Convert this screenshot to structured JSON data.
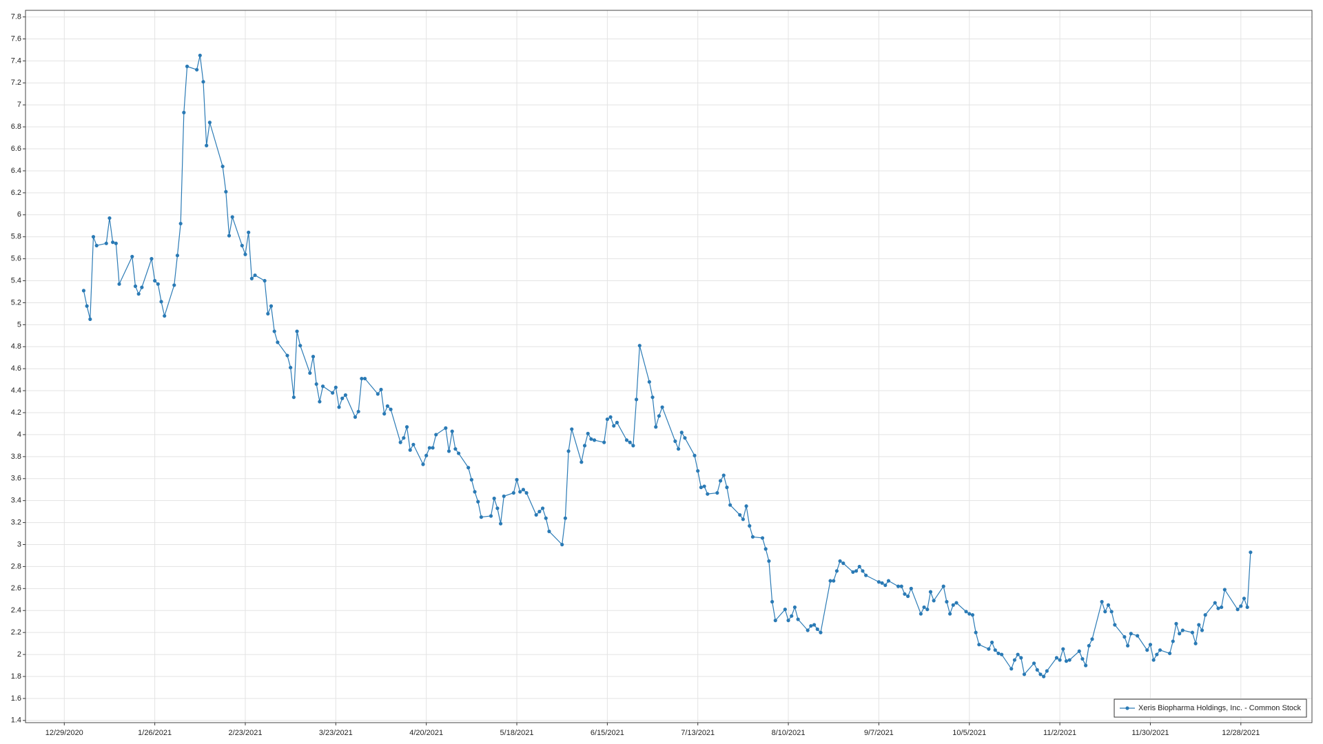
{
  "chart_data": {
    "type": "line",
    "x": [
      "1/4/2021",
      "1/5/2021",
      "1/6/2021",
      "1/7/2021",
      "1/8/2021",
      "1/11/2021",
      "1/12/2021",
      "1/13/2021",
      "1/14/2021",
      "1/15/2021",
      "1/19/2021",
      "1/20/2021",
      "1/21/2021",
      "1/22/2021",
      "1/25/2021",
      "1/26/2021",
      "1/27/2021",
      "1/28/2021",
      "1/29/2021",
      "2/1/2021",
      "2/2/2021",
      "2/3/2021",
      "2/4/2021",
      "2/5/2021",
      "2/8/2021",
      "2/9/2021",
      "2/10/2021",
      "2/11/2021",
      "2/12/2021",
      "2/16/2021",
      "2/17/2021",
      "2/18/2021",
      "2/19/2021",
      "2/22/2021",
      "2/23/2021",
      "2/24/2021",
      "2/25/2021",
      "2/26/2021",
      "3/1/2021",
      "3/2/2021",
      "3/3/2021",
      "3/4/2021",
      "3/5/2021",
      "3/8/2021",
      "3/9/2021",
      "3/10/2021",
      "3/11/2021",
      "3/12/2021",
      "3/15/2021",
      "3/16/2021",
      "3/17/2021",
      "3/18/2021",
      "3/19/2021",
      "3/22/2021",
      "3/23/2021",
      "3/24/2021",
      "3/25/2021",
      "3/26/2021",
      "3/29/2021",
      "3/30/2021",
      "3/31/2021",
      "4/1/2021",
      "4/5/2021",
      "4/6/2021",
      "4/7/2021",
      "4/8/2021",
      "4/9/2021",
      "4/12/2021",
      "4/13/2021",
      "4/14/2021",
      "4/15/2021",
      "4/16/2021",
      "4/19/2021",
      "4/20/2021",
      "4/21/2021",
      "4/22/2021",
      "4/23/2021",
      "4/26/2021",
      "4/27/2021",
      "4/28/2021",
      "4/29/2021",
      "4/30/2021",
      "5/3/2021",
      "5/4/2021",
      "5/5/2021",
      "5/6/2021",
      "5/7/2021",
      "5/10/2021",
      "5/11/2021",
      "5/12/2021",
      "5/13/2021",
      "5/14/2021",
      "5/17/2021",
      "5/18/2021",
      "5/19/2021",
      "5/20/2021",
      "5/21/2021",
      "5/24/2021",
      "5/25/2021",
      "5/26/2021",
      "5/27/2021",
      "5/28/2021",
      "6/1/2021",
      "6/2/2021",
      "6/3/2021",
      "6/4/2021",
      "6/7/2021",
      "6/8/2021",
      "6/9/2021",
      "6/10/2021",
      "6/11/2021",
      "6/14/2021",
      "6/15/2021",
      "6/16/2021",
      "6/17/2021",
      "6/18/2021",
      "6/21/2021",
      "6/22/2021",
      "6/23/2021",
      "6/24/2021",
      "6/25/2021",
      "6/28/2021",
      "6/29/2021",
      "6/30/2021",
      "7/1/2021",
      "7/2/2021",
      "7/6/2021",
      "7/7/2021",
      "7/8/2021",
      "7/9/2021",
      "7/12/2021",
      "7/13/2021",
      "7/14/2021",
      "7/15/2021",
      "7/16/2021",
      "7/19/2021",
      "7/20/2021",
      "7/21/2021",
      "7/22/2021",
      "7/23/2021",
      "7/26/2021",
      "7/27/2021",
      "7/28/2021",
      "7/29/2021",
      "7/30/2021",
      "8/2/2021",
      "8/3/2021",
      "8/4/2021",
      "8/5/2021",
      "8/6/2021",
      "8/9/2021",
      "8/10/2021",
      "8/11/2021",
      "8/12/2021",
      "8/13/2021",
      "8/16/2021",
      "8/17/2021",
      "8/18/2021",
      "8/19/2021",
      "8/20/2021",
      "8/23/2021",
      "8/24/2021",
      "8/25/2021",
      "8/26/2021",
      "8/27/2021",
      "8/30/2021",
      "8/31/2021",
      "9/1/2021",
      "9/2/2021",
      "9/3/2021",
      "9/7/2021",
      "9/8/2021",
      "9/9/2021",
      "9/10/2021",
      "9/13/2021",
      "9/14/2021",
      "9/15/2021",
      "9/16/2021",
      "9/17/2021",
      "9/20/2021",
      "9/21/2021",
      "9/22/2021",
      "9/23/2021",
      "9/24/2021",
      "9/27/2021",
      "9/28/2021",
      "9/29/2021",
      "9/30/2021",
      "10/1/2021",
      "10/4/2021",
      "10/5/2021",
      "10/6/2021",
      "10/7/2021",
      "10/8/2021",
      "10/11/2021",
      "10/12/2021",
      "10/13/2021",
      "10/14/2021",
      "10/15/2021",
      "10/18/2021",
      "10/19/2021",
      "10/20/2021",
      "10/21/2021",
      "10/22/2021",
      "10/25/2021",
      "10/26/2021",
      "10/27/2021",
      "10/28/2021",
      "10/29/2021",
      "11/1/2021",
      "11/2/2021",
      "11/3/2021",
      "11/4/2021",
      "11/5/2021",
      "11/8/2021",
      "11/9/2021",
      "11/10/2021",
      "11/11/2021",
      "11/12/2021",
      "11/15/2021",
      "11/16/2021",
      "11/17/2021",
      "11/18/2021",
      "11/19/2021",
      "11/22/2021",
      "11/23/2021",
      "11/24/2021",
      "11/26/2021",
      "11/29/2021",
      "11/30/2021",
      "12/1/2021",
      "12/2/2021",
      "12/3/2021",
      "12/6/2021",
      "12/7/2021",
      "12/8/2021",
      "12/9/2021",
      "12/10/2021",
      "12/13/2021",
      "12/14/2021",
      "12/15/2021",
      "12/16/2021",
      "12/17/2021",
      "12/20/2021",
      "12/21/2021",
      "12/22/2021",
      "12/23/2021",
      "12/27/2021",
      "12/28/2021",
      "12/29/2021",
      "12/30/2021",
      "12/31/2021"
    ],
    "series": [
      {
        "name": "Xeris Biopharma Holdings, Inc. - Common Stock",
        "color": "#2a7ab5",
        "values": [
          5.31,
          5.17,
          5.05,
          5.8,
          5.72,
          5.74,
          5.97,
          5.75,
          5.74,
          5.37,
          5.62,
          5.35,
          5.28,
          5.34,
          5.6,
          5.4,
          5.37,
          5.21,
          5.08,
          5.36,
          5.63,
          5.92,
          6.93,
          7.35,
          7.32,
          7.45,
          7.21,
          6.63,
          6.84,
          6.44,
          6.21,
          5.81,
          5.98,
          5.72,
          5.64,
          5.84,
          5.42,
          5.45,
          5.4,
          5.1,
          5.17,
          4.94,
          4.84,
          4.72,
          4.61,
          4.34,
          4.94,
          4.81,
          4.56,
          4.71,
          4.46,
          4.3,
          4.44,
          4.38,
          4.43,
          4.25,
          4.33,
          4.36,
          4.16,
          4.21,
          4.51,
          4.51,
          4.37,
          4.41,
          4.19,
          4.26,
          4.23,
          3.93,
          3.97,
          4.07,
          3.86,
          3.91,
          3.73,
          3.81,
          3.88,
          3.88,
          4,
          4.06,
          3.85,
          4.03,
          3.87,
          3.83,
          3.7,
          3.59,
          3.48,
          3.39,
          3.25,
          3.26,
          3.42,
          3.33,
          3.19,
          3.44,
          3.47,
          3.59,
          3.48,
          3.5,
          3.47,
          3.27,
          3.3,
          3.33,
          3.24,
          3.12,
          3,
          3.24,
          3.85,
          4.05,
          3.75,
          3.9,
          4.01,
          3.96,
          3.95,
          3.93,
          4.14,
          4.16,
          4.08,
          4.11,
          3.95,
          3.93,
          3.9,
          4.32,
          4.81,
          4.48,
          4.34,
          4.07,
          4.17,
          4.25,
          3.94,
          3.87,
          4.02,
          3.97,
          3.81,
          3.67,
          3.52,
          3.53,
          3.46,
          3.47,
          3.58,
          3.63,
          3.52,
          3.36,
          3.27,
          3.23,
          3.35,
          3.17,
          3.07,
          3.06,
          2.96,
          2.85,
          2.48,
          2.31,
          2.41,
          2.31,
          2.35,
          2.43,
          2.32,
          2.22,
          2.26,
          2.27,
          2.23,
          2.2,
          2.67,
          2.67,
          2.76,
          2.85,
          2.83,
          2.75,
          2.76,
          2.8,
          2.76,
          2.72,
          2.66,
          2.65,
          2.63,
          2.67,
          2.62,
          2.62,
          2.55,
          2.53,
          2.6,
          2.37,
          2.43,
          2.41,
          2.57,
          2.49,
          2.62,
          2.48,
          2.37,
          2.45,
          2.47,
          2.39,
          2.37,
          2.36,
          2.2,
          2.09,
          2.05,
          2.11,
          2.04,
          2.01,
          2.0,
          1.87,
          1.95,
          2.0,
          1.97,
          1.82,
          1.92,
          1.86,
          1.82,
          1.8,
          1.85,
          1.97,
          1.95,
          2.05,
          1.94,
          1.95,
          2.03,
          1.96,
          1.9,
          2.08,
          2.14,
          2.48,
          2.39,
          2.45,
          2.39,
          2.27,
          2.16,
          2.08,
          2.19,
          2.17,
          2.04,
          2.09,
          1.95,
          2.0,
          2.04,
          2.01,
          2.12,
          2.28,
          2.19,
          2.22,
          2.2,
          2.1,
          2.27,
          2.22,
          2.36,
          2.47,
          2.42,
          2.43,
          2.59,
          2.41,
          2.44,
          2.51,
          2.43,
          2.93
        ]
      }
    ],
    "xlim": [
      "12/17/2020",
      "1/19/2022"
    ],
    "xticks": [
      "12/29/2020",
      "1/26/2021",
      "2/23/2021",
      "3/23/2021",
      "4/20/2021",
      "5/18/2021",
      "6/15/2021",
      "7/13/2021",
      "8/10/2021",
      "9/7/2021",
      "10/5/2021",
      "11/2/2021",
      "11/30/2021",
      "12/28/2021"
    ],
    "ylim": [
      1.38,
      7.86
    ],
    "yticks": [
      1.4,
      1.6,
      1.8,
      2,
      2.2,
      2.4,
      2.6,
      2.8,
      3,
      3.2,
      3.4,
      3.6,
      3.8,
      4,
      4.2,
      4.4,
      4.6,
      4.8,
      5,
      5.2,
      5.4,
      5.6,
      5.8,
      6,
      6.2,
      6.4,
      6.6,
      6.8,
      7,
      7.2,
      7.4,
      7.6,
      7.8
    ],
    "grid": true,
    "markers": true,
    "legend": "lower right"
  }
}
